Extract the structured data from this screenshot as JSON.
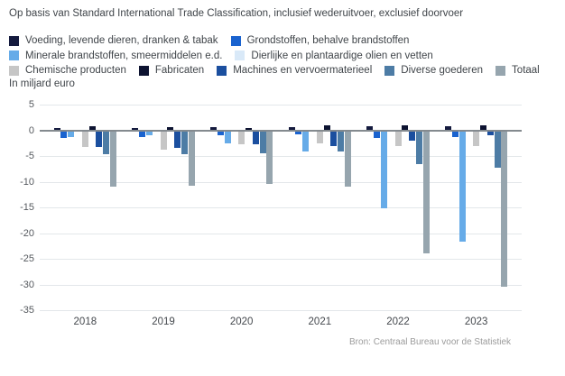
{
  "title": "Op basis van Standard International Trade Classification, inclusief wederuitvoer, exclusief doorvoer",
  "unit_label": "In miljard euro",
  "source": "Bron: Centraal Bureau voor de Statistiek",
  "colors": {
    "grid": "#e3e7ea",
    "zero_line": "#848a8f",
    "text": "#3f4449",
    "source_text": "#9b9b9b"
  },
  "chart_data": {
    "type": "bar",
    "title": "Op basis van Standard International Trade Classification, inclusief wederuitvoer, exclusief doorvoer",
    "ylabel": "In miljard euro",
    "xlabel": "",
    "ylim": [
      -35,
      5
    ],
    "ytick_step": 5,
    "grid": true,
    "legend_position": "top",
    "legend_rows": [
      2,
      2,
      5
    ],
    "categories": [
      "2018",
      "2019",
      "2020",
      "2021",
      "2022",
      "2023"
    ],
    "series": [
      {
        "name": "Voeding, levende dieren, dranken & tabak",
        "color": "#141a3e",
        "values": [
          0.5,
          0.5,
          0.7,
          0.7,
          0.8,
          0.8
        ]
      },
      {
        "name": "Grondstoffen, behalve brandstoffen",
        "color": "#1a63cf",
        "values": [
          -1.5,
          -1.4,
          -1.0,
          -0.8,
          -1.5,
          -1.3
        ]
      },
      {
        "name": "Minerale brandstoffen, smeermiddelen e.d.",
        "color": "#66abe8",
        "values": [
          -1.3,
          -0.9,
          -2.5,
          -4.2,
          -15.2,
          -21.6
        ]
      },
      {
        "name": "Dierlijke en plantaardige olien en vetten",
        "color": "#d9e9f8",
        "values": [
          -0.1,
          -0.1,
          -0.1,
          -0.1,
          -0.2,
          -0.2
        ]
      },
      {
        "name": "Chemische producten",
        "color": "#c6c6c6",
        "values": [
          -3.3,
          -3.7,
          -2.7,
          -2.6,
          -3.1,
          -3.0
        ]
      },
      {
        "name": "Fabricaten",
        "color": "#0d1331",
        "values": [
          0.8,
          0.6,
          0.4,
          0.9,
          1.0,
          1.0
        ]
      },
      {
        "name": "Machines en vervoermaterieel",
        "color": "#1b4f9f",
        "values": [
          -3.2,
          -3.5,
          -2.8,
          -3.0,
          -2.0,
          -0.9
        ]
      },
      {
        "name": "Diverse goederen",
        "color": "#4d7ca5",
        "values": [
          -4.6,
          -4.7,
          -4.4,
          -4.2,
          -6.6,
          -7.2
        ]
      },
      {
        "name": "Totaal",
        "color": "#96a5ae",
        "values": [
          -10.9,
          -10.8,
          -10.5,
          -11.0,
          -23.9,
          -30.5
        ]
      }
    ]
  }
}
